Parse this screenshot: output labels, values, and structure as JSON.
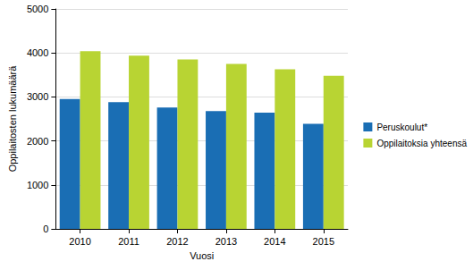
{
  "chart_data": {
    "type": "bar",
    "categories": [
      "2010",
      "2011",
      "2012",
      "2013",
      "2014",
      "2015"
    ],
    "series": [
      {
        "name": "Peruskoulut*",
        "color": "#1a6eb4",
        "values": [
          2950,
          2880,
          2760,
          2680,
          2640,
          2390
        ]
      },
      {
        "name": "Oppilaitoksia yhteensä",
        "color": "#b8d433",
        "values": [
          4040,
          3940,
          3850,
          3750,
          3630,
          3480
        ]
      }
    ],
    "x_label": "Vuosi",
    "y_label": "Oppilaitosten lukumäärä",
    "ylim": [
      0,
      5000
    ],
    "yticks": [
      0,
      1000,
      2000,
      3000,
      4000,
      5000
    ],
    "grid": true,
    "legend": "right"
  }
}
